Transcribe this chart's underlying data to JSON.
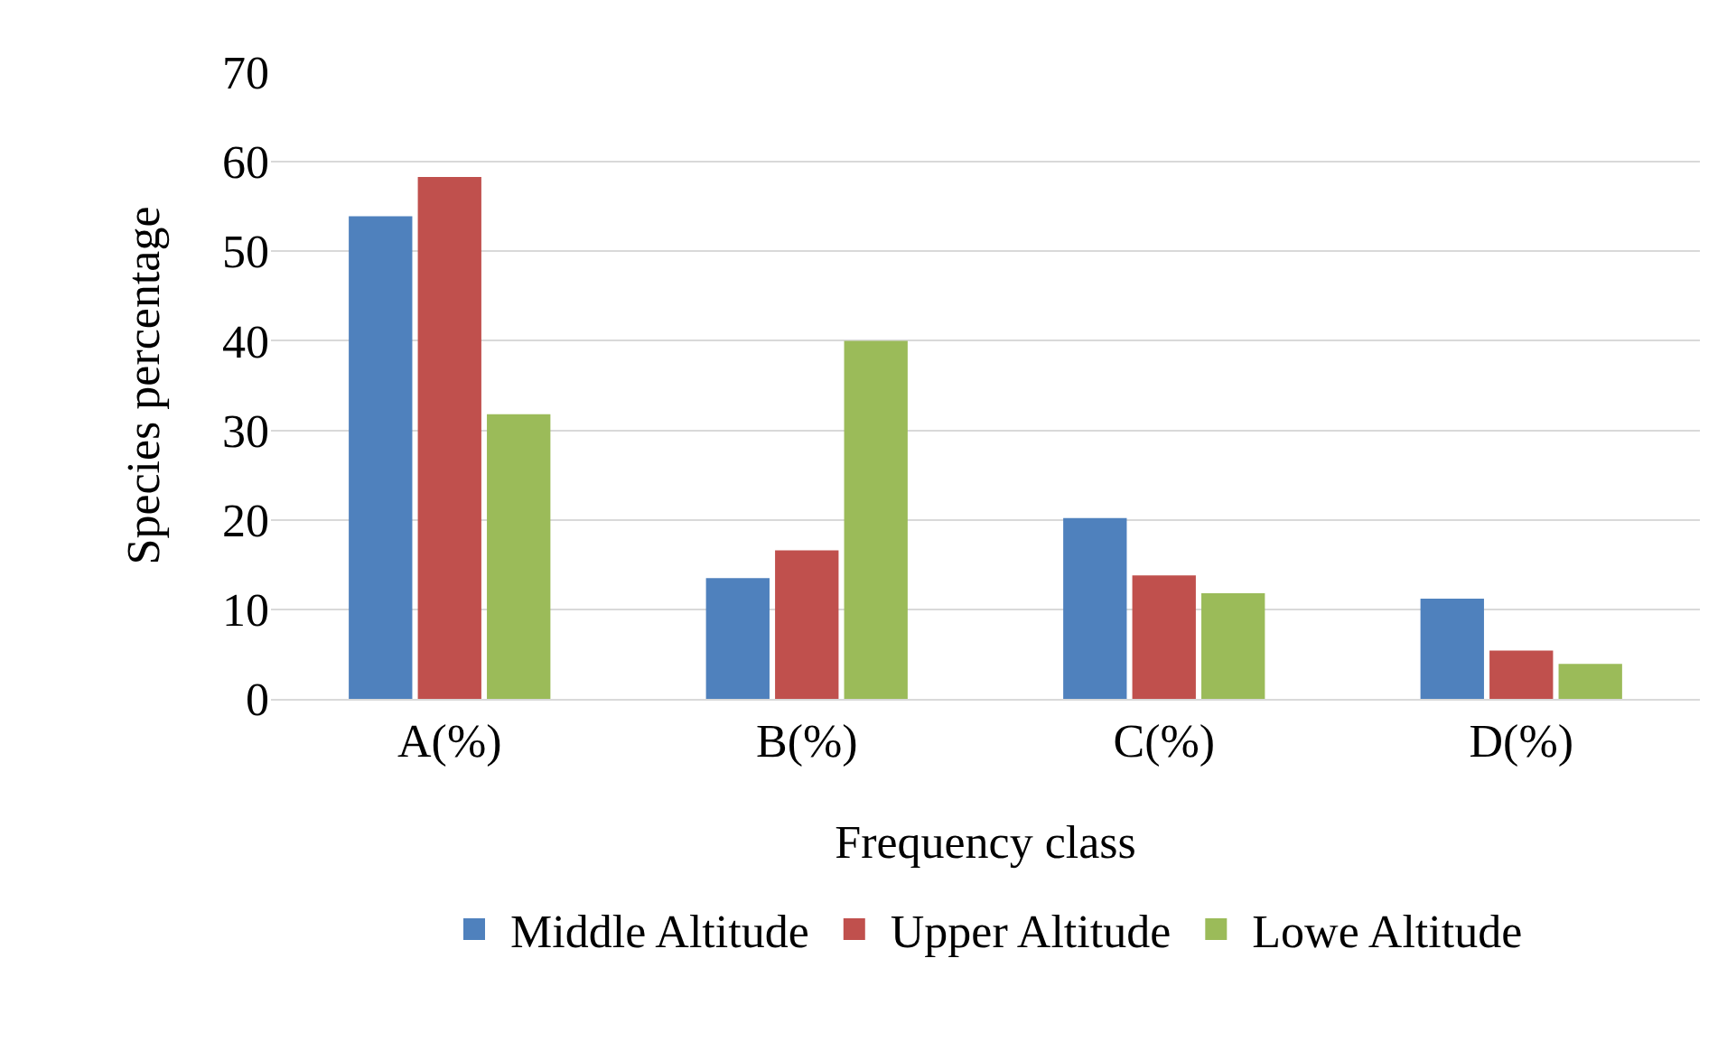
{
  "chart_data": {
    "type": "bar",
    "xlabel": "Frequency class",
    "ylabel": "Species percentage",
    "categories": [
      "A(%)",
      "B(%)",
      "C(%)",
      "D(%)"
    ],
    "series": [
      {
        "name": "Middle Altitude",
        "color": "#4f81bd",
        "values": [
          53.9,
          13.5,
          20.2,
          11.2
        ]
      },
      {
        "name": "Upper Altitude",
        "color": "#c0504d",
        "values": [
          58.3,
          16.6,
          13.8,
          5.4
        ]
      },
      {
        "name": "Lowe Altitude",
        "color": "#9bbb59",
        "values": [
          31.8,
          40,
          11.8,
          3.9
        ]
      }
    ],
    "ylim": [
      0,
      70
    ],
    "yticks": [
      0,
      10,
      20,
      30,
      40,
      50,
      60,
      70
    ],
    "grid": "y",
    "legend": "bottom"
  }
}
